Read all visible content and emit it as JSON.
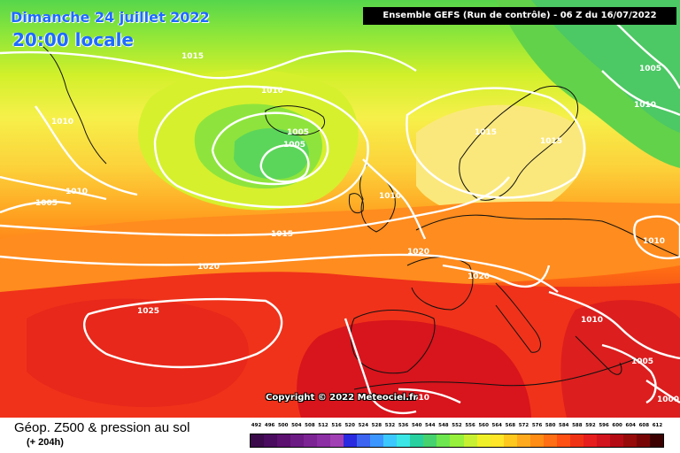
{
  "header": {
    "date": "Dimanche 24 juillet 2022",
    "local_time": "20:00 locale",
    "run_info": "Ensemble GEFS  (Run de contrôle)  -  06 Z du 16/07/2022"
  },
  "map": {
    "copyright": "Copyright © 2022 Meteociel.fr",
    "isobar_labels": [
      "1015",
      "1010",
      "1005",
      "1010",
      "1005",
      "1005",
      "1010",
      "1015",
      "1015",
      "1010",
      "1015",
      "1020",
      "1020",
      "1020",
      "1025",
      "1010",
      "1010",
      "1005",
      "1000",
      "1005",
      "1010",
      "1010"
    ]
  },
  "legend": {
    "title": "Géop. Z500 & pression au sol",
    "subtitle": "(+ 204h)",
    "scale_values": [
      "492",
      "496",
      "500",
      "504",
      "508",
      "512",
      "516",
      "520",
      "524",
      "528",
      "532",
      "536",
      "540",
      "544",
      "548",
      "552",
      "556",
      "560",
      "564",
      "568",
      "572",
      "576",
      "580",
      "584",
      "588",
      "592",
      "596",
      "600",
      "604",
      "608",
      "612"
    ],
    "scale_colors": [
      "#3a0a4a",
      "#4a0c5e",
      "#5c1070",
      "#6c1a84",
      "#7c2494",
      "#8c2ea4",
      "#a040b4",
      "#2a2ae0",
      "#3c64f0",
      "#3c96ff",
      "#3cc8ff",
      "#3ce6e6",
      "#28d0a0",
      "#46d26e",
      "#6ee650",
      "#96f03c",
      "#c8f032",
      "#f0f028",
      "#ffe628",
      "#ffc81e",
      "#ffaa1e",
      "#ff8c14",
      "#ff6e14",
      "#ff5014",
      "#f03214",
      "#e61e1e",
      "#d2141e",
      "#b40a14",
      "#960a0a",
      "#780505",
      "#3c0000"
    ]
  }
}
